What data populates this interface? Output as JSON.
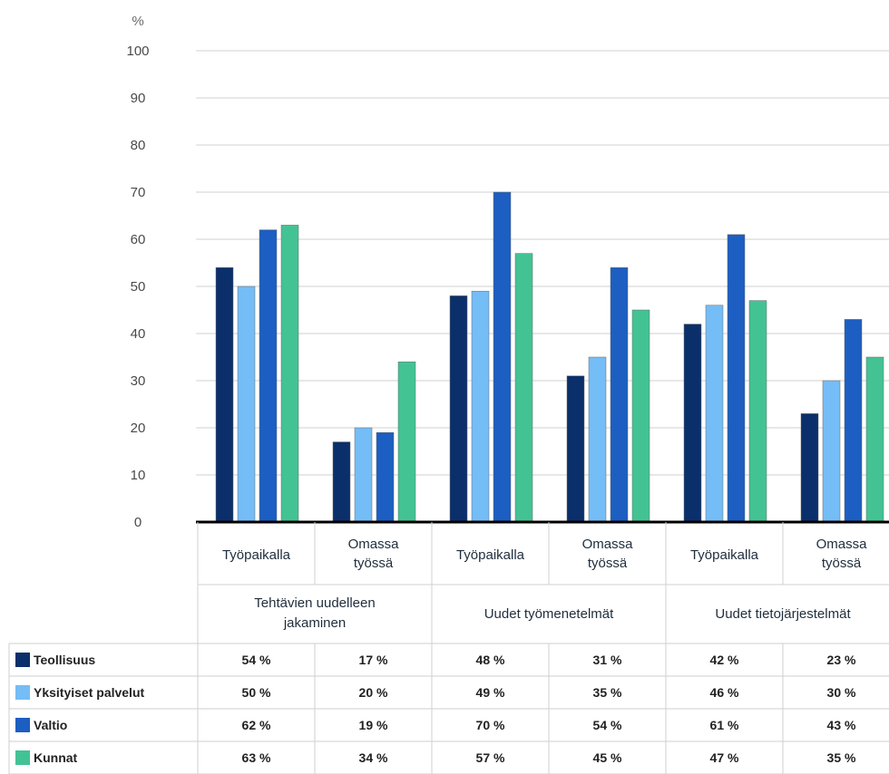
{
  "chart_data": {
    "type": "bar",
    "unit_label": "%",
    "ylim": [
      0,
      100
    ],
    "yticks": [
      0,
      10,
      20,
      30,
      40,
      50,
      60,
      70,
      80,
      90,
      100
    ],
    "grid": true,
    "categories": [
      "Työpaikalla",
      "Omassa työssä",
      "Työpaikalla",
      "Omassa työssä",
      "Työpaikalla",
      "Omassa työssä"
    ],
    "category_lines": [
      [
        "Työpaikalla"
      ],
      [
        "Omassa",
        "työssä"
      ],
      [
        "Työpaikalla"
      ],
      [
        "Omassa",
        "työssä"
      ],
      [
        "Työpaikalla"
      ],
      [
        "Omassa",
        "työssä"
      ]
    ],
    "groups": [
      {
        "lines": [
          "Tehtävien uudelleen",
          "jakaminen"
        ],
        "span": 2
      },
      {
        "lines": [
          "Uudet työmenetelmät"
        ],
        "span": 2
      },
      {
        "lines": [
          "Uudet tietojärjestelmät"
        ],
        "span": 2
      }
    ],
    "series": [
      {
        "name": "Teollisuus",
        "color": "#0b2f6b",
        "values": [
          54,
          17,
          48,
          31,
          42,
          23
        ],
        "labels": [
          "54 %",
          "17 %",
          "48 %",
          "31 %",
          "42 %",
          "23 %"
        ]
      },
      {
        "name": "Yksityiset palvelut",
        "color": "#74bdf7",
        "values": [
          50,
          20,
          49,
          35,
          46,
          30
        ],
        "labels": [
          "50 %",
          "20 %",
          "49 %",
          "35 %",
          "46 %",
          "30 %"
        ]
      },
      {
        "name": "Valtio",
        "color": "#1c5ec2",
        "values": [
          62,
          19,
          70,
          54,
          61,
          43
        ],
        "labels": [
          "62 %",
          "19 %",
          "70 %",
          "54 %",
          "61 %",
          "43 %"
        ]
      },
      {
        "name": "Kunnat",
        "color": "#43c394",
        "values": [
          63,
          34,
          57,
          45,
          47,
          35
        ],
        "labels": [
          "63 %",
          "34 %",
          "57 %",
          "45 %",
          "47 %",
          "35 %"
        ]
      }
    ]
  }
}
